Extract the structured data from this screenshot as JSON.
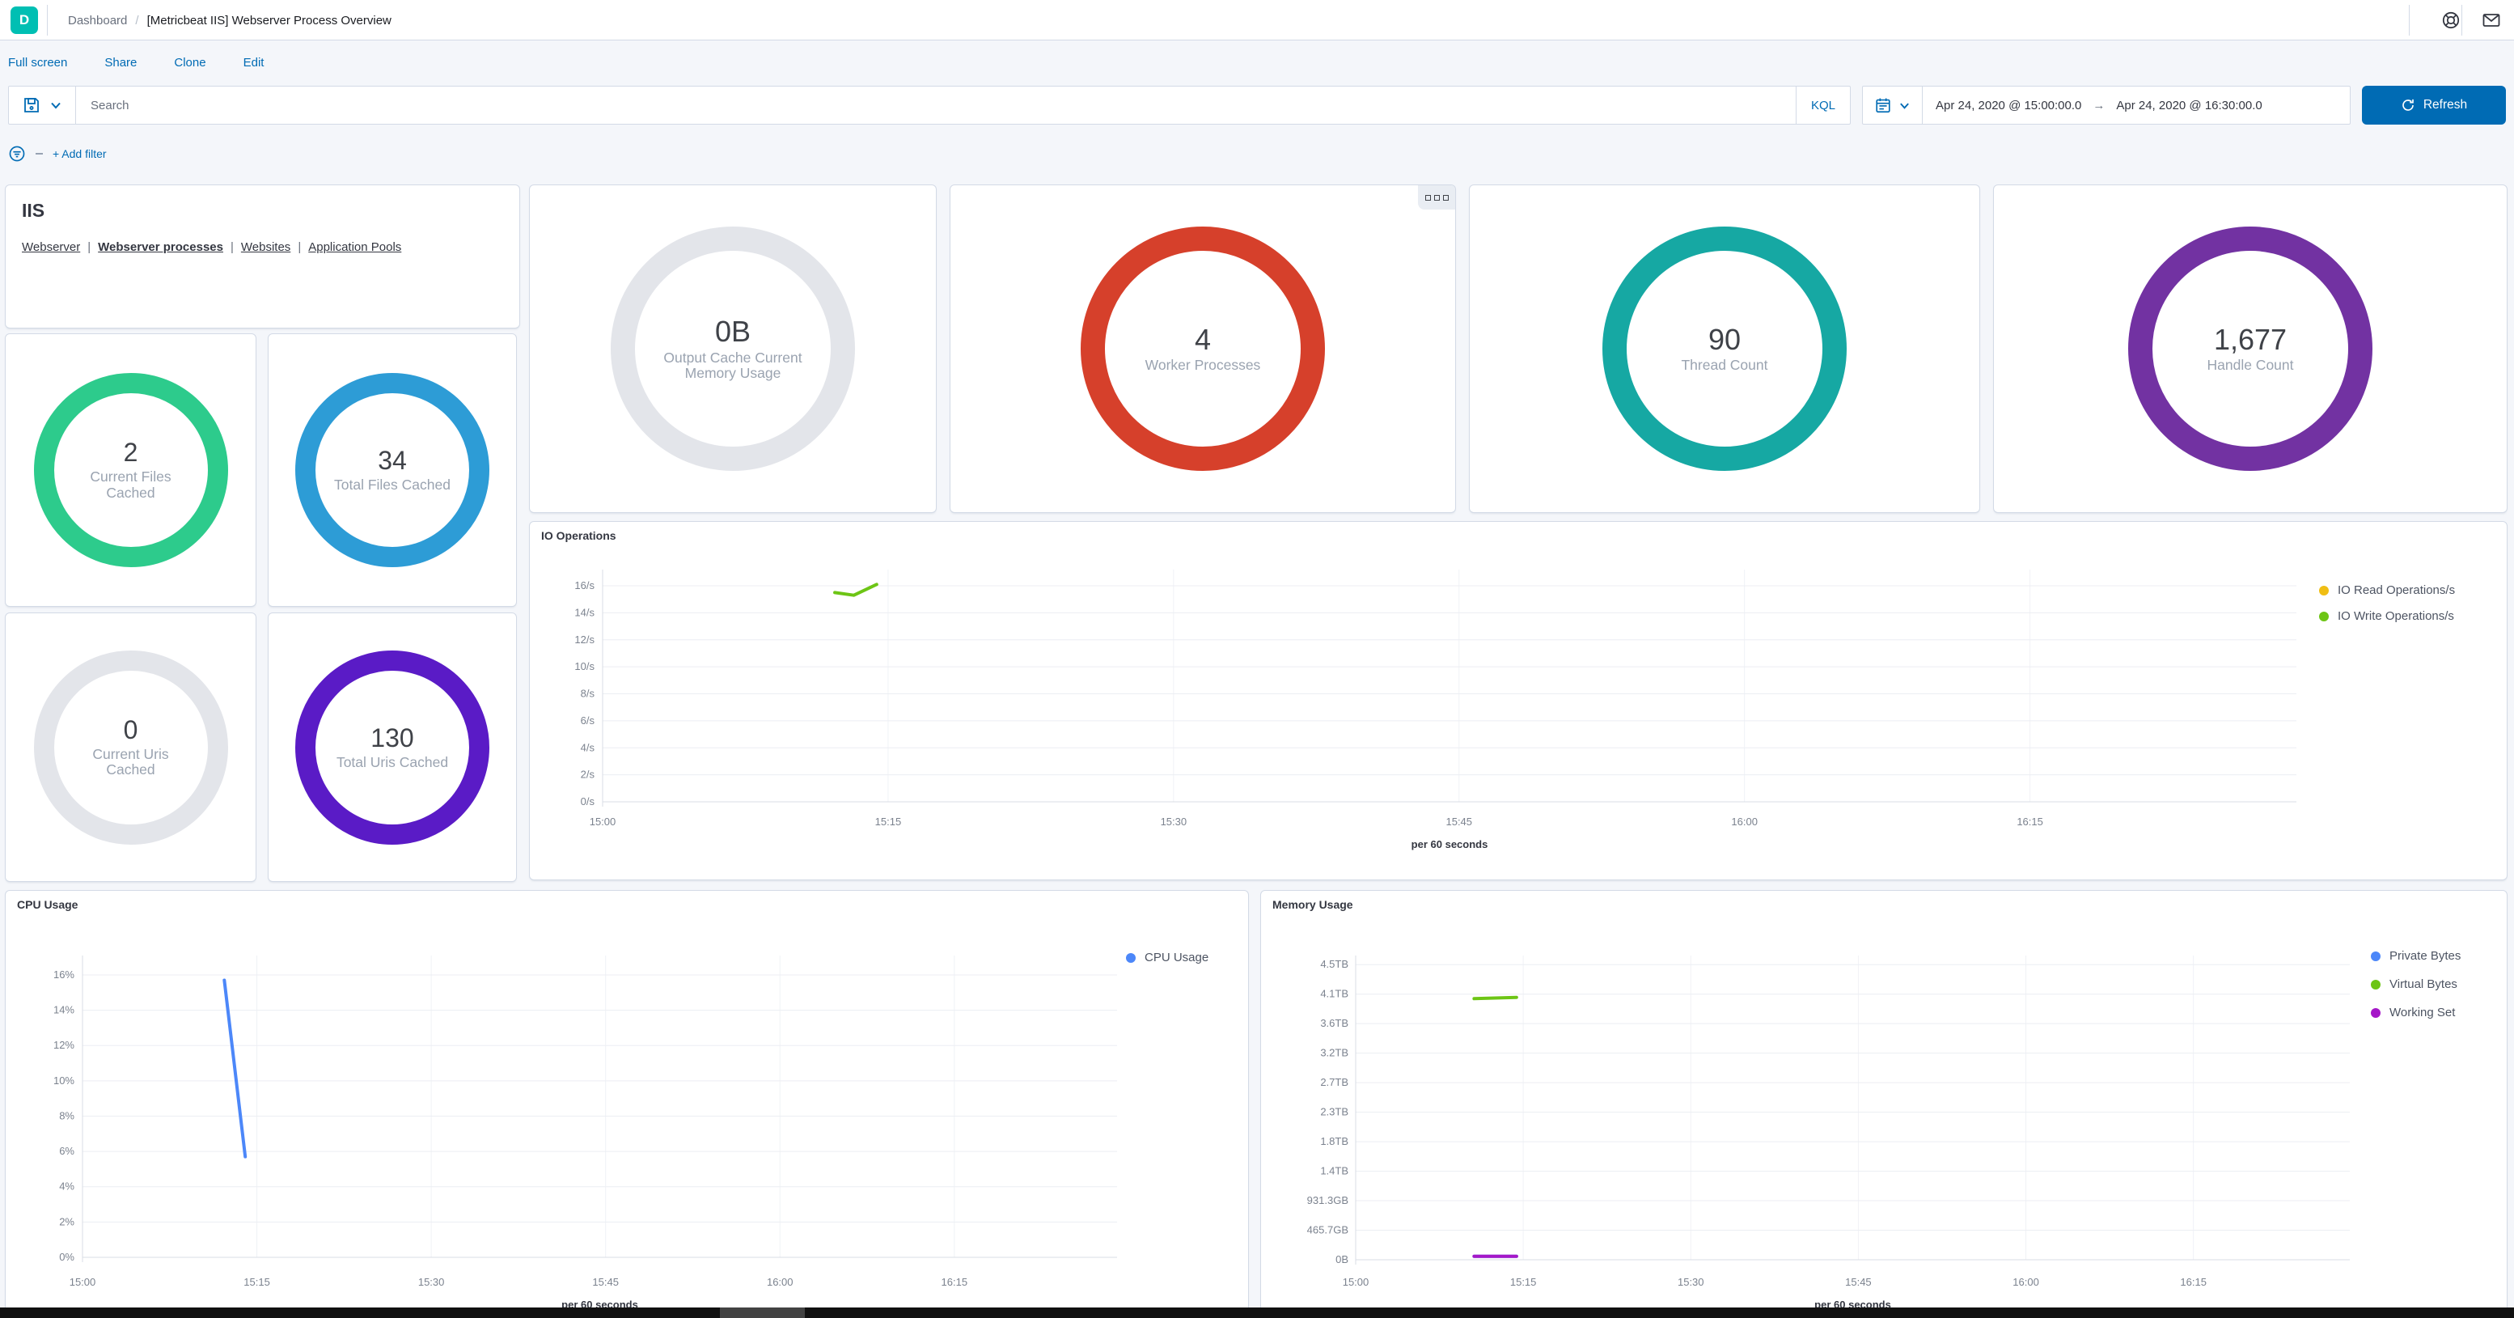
{
  "header": {
    "logo_letter": "D",
    "breadcrumb": "Dashboard",
    "breadcrumb_separator": "/",
    "title": "[Metricbeat IIS] Webserver Process Overview"
  },
  "toolbar": {
    "links": [
      {
        "label": "Full screen"
      },
      {
        "label": "Share"
      },
      {
        "label": "Clone"
      },
      {
        "label": "Edit"
      }
    ]
  },
  "search": {
    "placeholder": "Search",
    "kql_label": "KQL",
    "date_from": "Apr 24, 2020 @ 15:00:00.0",
    "date_arrow": "→",
    "date_to": "Apr 24, 2020 @ 16:30:00.0",
    "refresh_label": "Refresh"
  },
  "filter_bar": {
    "add_filter_label": "+ Add filter"
  },
  "iis_panel": {
    "title": "IIS",
    "separator": "|",
    "links": [
      {
        "label": "Webserver",
        "active": false
      },
      {
        "label": "Webserver processes",
        "active": true
      },
      {
        "label": "Websites",
        "active": false
      },
      {
        "label": "Application Pools",
        "active": false
      }
    ]
  },
  "gauges": [
    {
      "id": "output-cache-current-memory-usage",
      "value": "0B",
      "label": "Output Cache Current Memory Usage",
      "color": "#E3E5EA",
      "size": "large"
    },
    {
      "id": "worker-processes",
      "value": "4",
      "label": "Worker Processes",
      "color": "#D6402B",
      "size": "large"
    },
    {
      "id": "thread-count",
      "value": "90",
      "label": "Thread Count",
      "color": "#16A8A3",
      "size": "large"
    },
    {
      "id": "handle-count",
      "value": "1,677",
      "label": "Handle Count",
      "color": "#7232A2",
      "size": "large"
    },
    {
      "id": "current-files-cached",
      "value": "2",
      "label": "Current Files Cached",
      "color": "#2DCB8C",
      "size": "small"
    },
    {
      "id": "total-files-cached",
      "value": "34",
      "label": "Total Files Cached",
      "color": "#2D9CD6",
      "size": "small"
    },
    {
      "id": "current-uris-cached",
      "value": "0",
      "label": "Current Uris Cached",
      "color": "#E3E5EA",
      "size": "small"
    },
    {
      "id": "total-uris-cached",
      "value": "130",
      "label": "Total Uris Cached",
      "color": "#5A1BC6",
      "size": "small"
    }
  ],
  "chart_data": [
    {
      "type": "line",
      "title": "IO Operations",
      "xlabel": "per 60 seconds",
      "x_domain": [
        0,
        89
      ],
      "x_ticks": [
        {
          "v": 0,
          "label": "15:00"
        },
        {
          "v": 15,
          "label": "15:15"
        },
        {
          "v": 30,
          "label": "15:30"
        },
        {
          "v": 45,
          "label": "15:45"
        },
        {
          "v": 60,
          "label": "16:00"
        },
        {
          "v": 75,
          "label": "16:15"
        }
      ],
      "y_domain": [
        0,
        17.2
      ],
      "y_ticks": [
        {
          "v": 0,
          "label": "0/s"
        },
        {
          "v": 2,
          "label": "2/s"
        },
        {
          "v": 4,
          "label": "4/s"
        },
        {
          "v": 6,
          "label": "6/s"
        },
        {
          "v": 8,
          "label": "8/s"
        },
        {
          "v": 10,
          "label": "10/s"
        },
        {
          "v": 12,
          "label": "12/s"
        },
        {
          "v": 14,
          "label": "14/s"
        },
        {
          "v": 16,
          "label": "16/s"
        }
      ],
      "legend_position": "right",
      "series": [
        {
          "name": "IO Read Operations/s",
          "color": "#F0BE14",
          "points": []
        },
        {
          "name": "IO Write Operations/s",
          "color": "#6DC515",
          "points": [
            [
              12.2,
              15.5
            ],
            [
              13.2,
              15.3
            ],
            [
              14.4,
              16.1
            ]
          ]
        }
      ]
    },
    {
      "type": "line",
      "title": "CPU Usage",
      "xlabel": "per 60 seconds",
      "x_domain": [
        0,
        89
      ],
      "x_ticks": [
        {
          "v": 0,
          "label": "15:00"
        },
        {
          "v": 15,
          "label": "15:15"
        },
        {
          "v": 30,
          "label": "15:30"
        },
        {
          "v": 45,
          "label": "15:45"
        },
        {
          "v": 60,
          "label": "16:00"
        },
        {
          "v": 75,
          "label": "16:15"
        }
      ],
      "y_domain": [
        0,
        17.1
      ],
      "y_ticks": [
        {
          "v": 0,
          "label": "0%"
        },
        {
          "v": 2,
          "label": "2%"
        },
        {
          "v": 4,
          "label": "4%"
        },
        {
          "v": 6,
          "label": "6%"
        },
        {
          "v": 8,
          "label": "8%"
        },
        {
          "v": 10,
          "label": "10%"
        },
        {
          "v": 12,
          "label": "12%"
        },
        {
          "v": 14,
          "label": "14%"
        },
        {
          "v": 16,
          "label": "16%"
        }
      ],
      "legend_position": "right",
      "series": [
        {
          "name": "CPU Usage",
          "color": "#4C87F9",
          "points": [
            [
              12.2,
              15.7
            ],
            [
              14.0,
              5.7
            ]
          ]
        }
      ]
    },
    {
      "type": "line",
      "title": "Memory Usage",
      "xlabel": "per 60 seconds",
      "x_domain": [
        0,
        89
      ],
      "x_ticks": [
        {
          "v": 0,
          "label": "15:00"
        },
        {
          "v": 15,
          "label": "15:15"
        },
        {
          "v": 30,
          "label": "15:30"
        },
        {
          "v": 45,
          "label": "15:45"
        },
        {
          "v": 60,
          "label": "16:00"
        },
        {
          "v": 75,
          "label": "16:15"
        }
      ],
      "y_domain": [
        0,
        4800
      ],
      "y_unit": "GB",
      "y_ticks": [
        {
          "v": 0,
          "label": "0B"
        },
        {
          "v": 465.7,
          "label": "465.7GB"
        },
        {
          "v": 931.3,
          "label": "931.3GB"
        },
        {
          "v": 1397.0,
          "label": "1.4TB"
        },
        {
          "v": 1862.6,
          "label": "1.8TB"
        },
        {
          "v": 2328.3,
          "label": "2.3TB"
        },
        {
          "v": 2793.9,
          "label": "2.7TB"
        },
        {
          "v": 3259.6,
          "label": "3.2TB"
        },
        {
          "v": 3725.3,
          "label": "3.6TB"
        },
        {
          "v": 4190.9,
          "label": "4.1TB"
        },
        {
          "v": 4656.6,
          "label": "4.5TB"
        }
      ],
      "legend_position": "right",
      "series": [
        {
          "name": "Private Bytes",
          "color": "#4C87F9",
          "points": [
            [
              10.6,
              55
            ],
            [
              14.4,
              55
            ]
          ]
        },
        {
          "name": "Virtual Bytes",
          "color": "#6DC515",
          "points": [
            [
              10.6,
              4120
            ],
            [
              14.4,
              4140
            ]
          ]
        },
        {
          "name": "Working Set",
          "color": "#A517C8",
          "points": [
            [
              10.6,
              55
            ],
            [
              14.4,
              55
            ]
          ]
        }
      ]
    }
  ]
}
